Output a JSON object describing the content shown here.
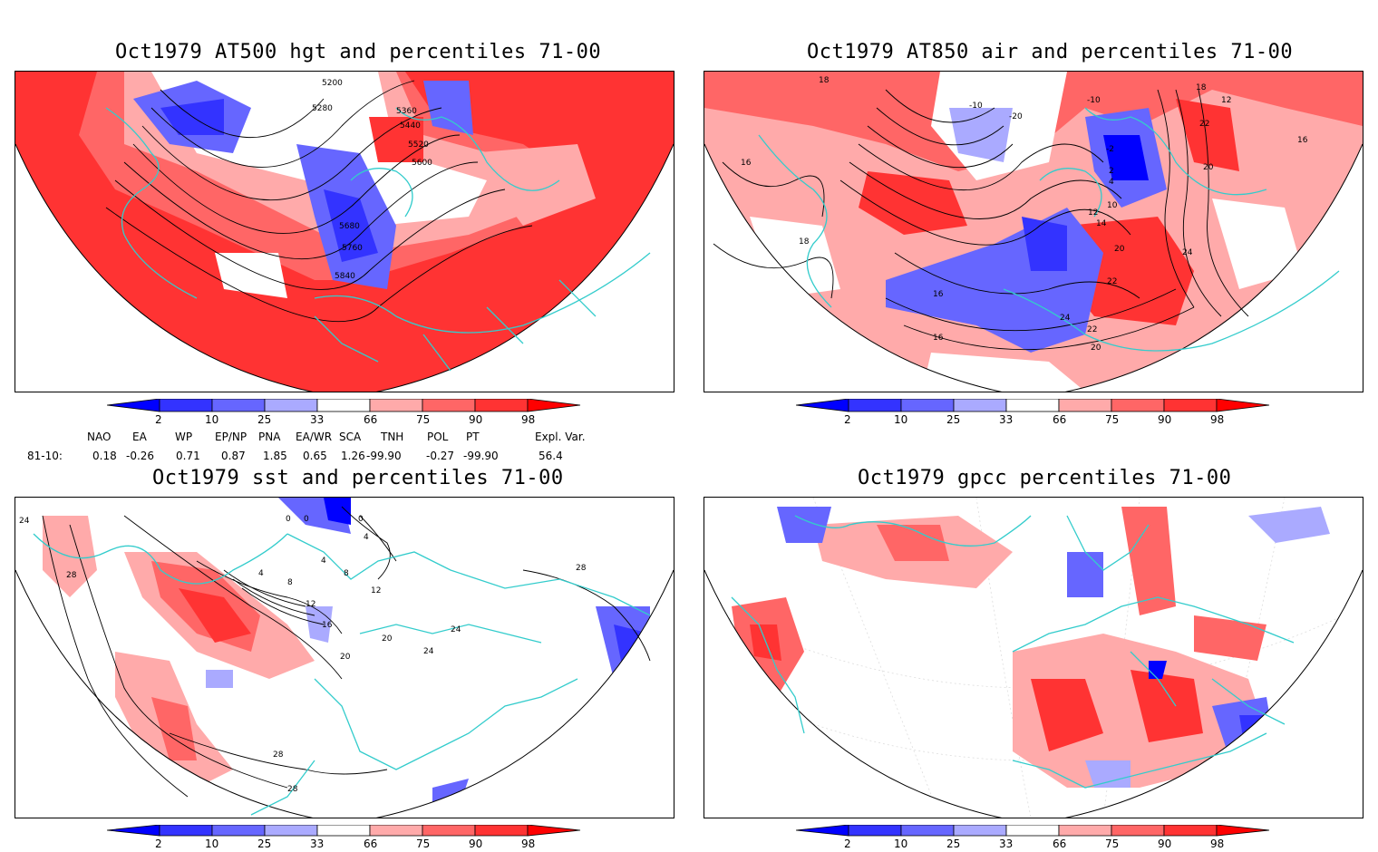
{
  "panels": [
    {
      "title": "Oct1979 AT500 hgt and percentiles 71-00",
      "contour_labels": [
        "5200",
        "5280",
        "5360",
        "5440",
        "5520",
        "5600",
        "5680",
        "5760",
        "5840"
      ]
    },
    {
      "title": "Oct1979 AT850 air and percentiles 71-00",
      "contour_labels": [
        "18",
        "16",
        "18",
        "16",
        "16",
        "-10",
        "-20",
        "-10",
        "-2",
        "2",
        "4",
        "10",
        "12",
        "14",
        "20",
        "22",
        "24",
        "24",
        "22",
        "20",
        "18",
        "12",
        "20",
        "22",
        "16"
      ]
    },
    {
      "title": "Oct1979 sst and percentiles 71-00",
      "contour_labels": [
        "24",
        "28",
        "0",
        "0",
        "0",
        "4",
        "4",
        "8",
        "8",
        "12",
        "12",
        "16",
        "20",
        "20",
        "24",
        "24",
        "28",
        "28",
        "28",
        "4"
      ]
    },
    {
      "title": "Oct1979 gpcc percentiles 71-00",
      "contour_labels": []
    }
  ],
  "colorbar": {
    "ticks": [
      "2",
      "10",
      "25",
      "33",
      "66",
      "75",
      "90",
      "98"
    ],
    "colors": {
      "blue_extreme": "#0000ff",
      "blue_2_10": "#3333ff",
      "blue_10_25": "#6666ff",
      "blue_25_33": "#aaaaff",
      "white": "#ffffff",
      "red_66_75": "#ffaaaa",
      "red_75_90": "#ff6666",
      "red_90_98": "#ff3333",
      "red_extreme": "#ff0000"
    }
  },
  "teleconnections": {
    "row_label": "81-10:",
    "headers": [
      "NAO",
      "EA",
      "WP",
      "EP/NP",
      "PNA",
      "EA/WR",
      "SCA",
      "TNH",
      "POL",
      "PT",
      "Expl. Var."
    ],
    "values": [
      "0.18",
      "-0.26",
      "0.71",
      "0.87",
      "1.85",
      "0.65",
      "1.26",
      "-99.90",
      "-0.27",
      "-99.90",
      "56.4"
    ]
  },
  "colors": {
    "coastline": "#33cccc",
    "contour": "#000000",
    "frame": "#000000"
  }
}
